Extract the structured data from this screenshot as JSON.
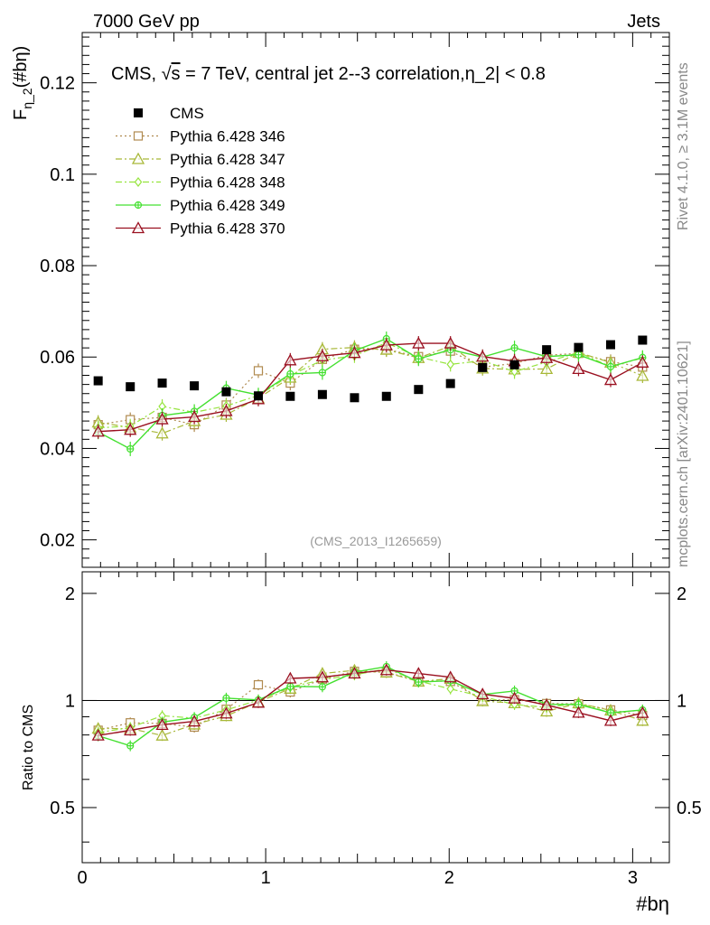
{
  "header": {
    "left": "7000 GeV pp",
    "right": "Jets",
    "side_top": "Rivet 4.1.0, ≥ 3.1M events",
    "side_bottom": "mcplots.cern.ch [arXiv:2401.10621]",
    "ref_id": "(CMS_2013_I1265659)"
  },
  "chart_data": {
    "type": "scatter",
    "title_parts": [
      "CMS, ",
      "s",
      " = 7 TeV, central jet 2--3 correlation,η_2| < 0.8"
    ],
    "sqrt_symbol": "√",
    "ylabel_main": "F",
    "ylabel_sub": "η_2",
    "ylabel_tail": "(#bη)",
    "ylabel_ratio": "Ratio to CMS",
    "xlabel": "#bη",
    "xlim": [
      0,
      3.2
    ],
    "ylim": [
      0.014,
      0.131
    ],
    "ratio_ylim": [
      0.35,
      2.3
    ],
    "x_ticks": [
      "0",
      "1",
      "2",
      "3"
    ],
    "y_ticks": [
      "0.02",
      "0.04",
      "0.06",
      "0.08",
      "0.1",
      "0.12"
    ],
    "ratio_ticks": [
      "0.5",
      "1",
      "2"
    ],
    "x": [
      0.087,
      0.262,
      0.436,
      0.611,
      0.785,
      0.96,
      1.134,
      1.309,
      1.484,
      1.658,
      1.833,
      2.007,
      2.182,
      2.356,
      2.531,
      2.705,
      2.88,
      3.054
    ],
    "series": [
      {
        "name": "CMS",
        "color": "#000000",
        "marker": "square-filled",
        "line": "none",
        "values": [
          0.0548,
          0.0535,
          0.0543,
          0.0537,
          0.0524,
          0.0515,
          0.0514,
          0.0518,
          0.0511,
          0.0514,
          0.0529,
          0.0542,
          0.0577,
          0.0583,
          0.0616,
          0.0621,
          0.0627,
          0.0637
        ]
      },
      {
        "name": "Pythia 6.428 346",
        "color": "#b08a4f",
        "marker": "square-open",
        "line": "dotted",
        "values": [
          0.0452,
          0.0463,
          0.0468,
          0.0452,
          0.0495,
          0.057,
          0.0543,
          0.0595,
          0.0617,
          0.0617,
          0.0601,
          0.0613,
          0.0578,
          0.0586,
          0.0604,
          0.0608,
          0.059,
          0.0578
        ]
      },
      {
        "name": "Pythia 6.428 347",
        "color": "#a8b838",
        "marker": "triangle-open",
        "line": "dashdot",
        "values": [
          0.0457,
          0.0446,
          0.0433,
          0.046,
          0.0474,
          0.051,
          0.0555,
          0.0617,
          0.0621,
          0.0616,
          0.0598,
          0.0624,
          0.0575,
          0.0573,
          0.0574,
          0.061,
          0.0588,
          0.0559
        ]
      },
      {
        "name": "Pythia 6.428 348",
        "color": "#96e43e",
        "marker": "diamond-open",
        "line": "dashdot",
        "values": [
          0.0445,
          0.0449,
          0.0492,
          0.0479,
          0.0493,
          0.0516,
          0.056,
          0.0593,
          0.0603,
          0.0631,
          0.06,
          0.0584,
          0.0592,
          0.0568,
          0.0589,
          0.061,
          0.0579,
          0.0598
        ]
      },
      {
        "name": "Pythia 6.428 349",
        "color": "#44e030",
        "marker": "cross-circle",
        "line": "solid",
        "values": [
          0.0436,
          0.0399,
          0.0472,
          0.0481,
          0.0532,
          0.0517,
          0.0563,
          0.0566,
          0.0614,
          0.064,
          0.0596,
          0.0616,
          0.06,
          0.062,
          0.0601,
          0.0605,
          0.0579,
          0.0599
        ]
      },
      {
        "name": "Pythia 6.428 370",
        "color": "#9a1020",
        "marker": "triangle-open",
        "line": "solid",
        "values": [
          0.0437,
          0.0441,
          0.0464,
          0.0469,
          0.0482,
          0.0508,
          0.0593,
          0.0602,
          0.0609,
          0.0626,
          0.063,
          0.063,
          0.0601,
          0.0591,
          0.0598,
          0.0574,
          0.055,
          0.0588
        ]
      }
    ]
  }
}
